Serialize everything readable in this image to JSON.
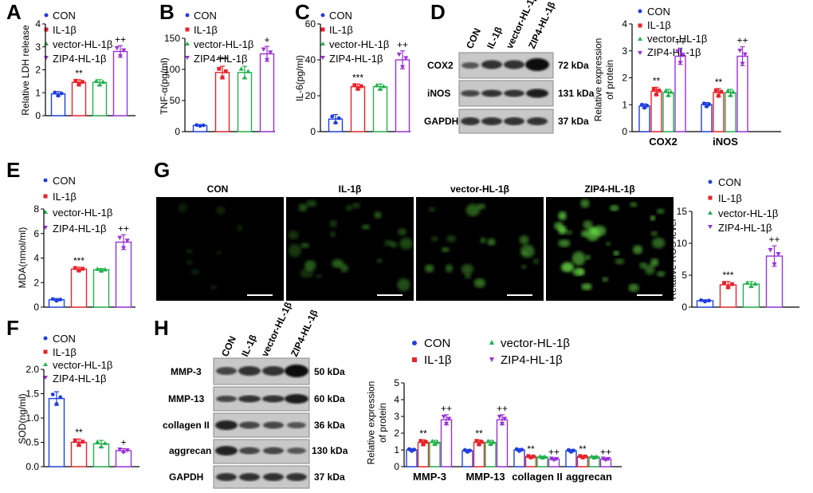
{
  "groups": [
    "CON",
    "IL-1β",
    "vector-HL-1β",
    "ZIP4-HL-1β"
  ],
  "colors": [
    "#1f3fe0",
    "#e8232a",
    "#22b14c",
    "#9b30d9"
  ],
  "panels": {
    "A": {
      "label": "A"
    },
    "B": {
      "label": "B"
    },
    "C": {
      "label": "C"
    },
    "D": {
      "label": "D"
    },
    "E": {
      "label": "E"
    },
    "F": {
      "label": "F"
    },
    "G": {
      "label": "G"
    },
    "H": {
      "label": "H"
    }
  },
  "blot_D": {
    "lanes": [
      "CON",
      "IL-1β",
      "vector-HL-1β",
      "ZIP4-HL-1β"
    ],
    "rows": [
      {
        "protein": "COX2",
        "size": "72 kDa"
      },
      {
        "protein": "iNOS",
        "size": "131 kDa"
      },
      {
        "protein": "GAPDH",
        "size": "37 kDa"
      }
    ]
  },
  "blot_H": {
    "lanes": [
      "CON",
      "IL-1β",
      "vector-HL-1β",
      "ZIP4-HL-1β"
    ],
    "rows": [
      {
        "protein": "MMP-3",
        "size": "50 kDa"
      },
      {
        "protein": "MMP-13",
        "size": "60 kDa"
      },
      {
        "protein": "collagen II",
        "size": "36 kDa"
      },
      {
        "protein": "aggrecan",
        "size": "130 kDa"
      },
      {
        "protein": "GAPDH",
        "size": "37 kDa"
      }
    ]
  },
  "images_G": {
    "titles": [
      "CON",
      "IL-1β",
      "vector-HL-1β",
      "ZIP4-HL-1β"
    ]
  },
  "chart_data": [
    {
      "id": "A",
      "type": "bar",
      "ylabel": "Relative LDH release",
      "ylim": [
        0,
        4
      ],
      "yticks": [
        0,
        1,
        2,
        3,
        4
      ],
      "categories": [
        "CON",
        "IL-1β",
        "vector-HL-1β",
        "ZIP4-HL-1β"
      ],
      "values": [
        0.95,
        1.45,
        1.45,
        2.8
      ],
      "errors": [
        0.1,
        0.12,
        0.12,
        0.25
      ],
      "annotations": [
        "",
        "**",
        "",
        "++"
      ]
    },
    {
      "id": "B",
      "type": "bar",
      "ylabel": "TNF-α(pg/ml)",
      "ylim": [
        0,
        150
      ],
      "yticks": [
        0,
        50,
        100,
        150
      ],
      "categories": [
        "CON",
        "IL-1β",
        "vector-HL-1β",
        "ZIP4-HL-1β"
      ],
      "values": [
        10,
        95,
        95,
        125
      ],
      "errors": [
        1,
        10,
        10,
        12
      ],
      "annotations": [
        "",
        "***",
        "",
        "+"
      ]
    },
    {
      "id": "C",
      "type": "bar",
      "ylabel": "IL-6(pg/ml)",
      "ylim": [
        0,
        60
      ],
      "yticks": [
        0,
        20,
        40,
        60
      ],
      "categories": [
        "CON",
        "IL-1β",
        "vector-HL-1β",
        "ZIP4-HL-1β"
      ],
      "values": [
        7,
        25,
        25,
        40
      ],
      "errors": [
        2.5,
        1.5,
        1.5,
        5
      ],
      "annotations": [
        "",
        "***",
        "",
        "++"
      ]
    },
    {
      "id": "D",
      "type": "bar",
      "ylabel": "Relative expression of protein",
      "ylim": [
        0,
        4
      ],
      "yticks": [
        0,
        1,
        2,
        3,
        4
      ],
      "categories": [
        "COX2",
        "iNOS"
      ],
      "series": [
        {
          "name": "CON",
          "values": [
            0.95,
            1.0
          ],
          "errors": [
            0.08,
            0.08
          ]
        },
        {
          "name": "IL-1β",
          "values": [
            1.5,
            1.45
          ],
          "errors": [
            0.15,
            0.15
          ]
        },
        {
          "name": "vector-HL-1β",
          "values": [
            1.45,
            1.45
          ],
          "errors": [
            0.12,
            0.12
          ]
        },
        {
          "name": "ZIP4-HL-1β",
          "values": [
            2.8,
            2.8
          ],
          "errors": [
            0.3,
            0.35
          ]
        }
      ],
      "annotations": [
        [
          "",
          "**",
          "",
          "++"
        ],
        [
          "",
          "**",
          "",
          "++"
        ]
      ]
    },
    {
      "id": "E",
      "type": "bar",
      "ylabel": "MDA(nmol/ml)",
      "ylim": [
        0,
        8
      ],
      "yticks": [
        0,
        2,
        4,
        6,
        8
      ],
      "categories": [
        "CON",
        "IL-1β",
        "vector-HL-1β",
        "ZIP4-HL-1β"
      ],
      "values": [
        0.6,
        3.1,
        3.05,
        5.3
      ],
      "errors": [
        0.1,
        0.15,
        0.1,
        0.6
      ],
      "annotations": [
        "",
        "***",
        "",
        "++"
      ]
    },
    {
      "id": "F",
      "type": "bar",
      "ylabel": "SOD(ng/ml)",
      "ylim": [
        0,
        2.0
      ],
      "yticks": [
        0.0,
        0.5,
        1.0,
        1.5,
        2.0
      ],
      "categories": [
        "CON",
        "IL-1β",
        "vector-HL-1β",
        "ZIP4-HL-1β"
      ],
      "values": [
        1.4,
        0.5,
        0.47,
        0.33
      ],
      "errors": [
        0.14,
        0.07,
        0.07,
        0.04
      ],
      "annotations": [
        "",
        "**",
        "",
        "+"
      ]
    },
    {
      "id": "G",
      "type": "bar",
      "ylabel": "Relative ROS level",
      "ylim": [
        0,
        15
      ],
      "yticks": [
        0,
        5,
        10,
        15
      ],
      "categories": [
        "CON",
        "IL-1β",
        "vector-HL-1β",
        "ZIP4-HL-1β"
      ],
      "values": [
        1,
        3.5,
        3.6,
        8
      ],
      "errors": [
        0.15,
        0.5,
        0.4,
        1.6
      ],
      "annotations": [
        "",
        "***",
        "",
        "++"
      ]
    },
    {
      "id": "H",
      "type": "bar",
      "ylabel": "Relative expression of protein",
      "ylim": [
        0,
        5
      ],
      "yticks": [
        0,
        1,
        2,
        3,
        4,
        5
      ],
      "categories": [
        "MMP-3",
        "MMP-13",
        "collagen II",
        "aggrecan"
      ],
      "series": [
        {
          "name": "CON",
          "values": [
            1.0,
            0.95,
            1.0,
            0.95
          ],
          "errors": [
            0.08,
            0.08,
            0.08,
            0.08
          ]
        },
        {
          "name": "IL-1β",
          "values": [
            1.45,
            1.45,
            0.6,
            0.6
          ],
          "errors": [
            0.15,
            0.15,
            0.06,
            0.06
          ]
        },
        {
          "name": "vector-HL-1β",
          "values": [
            1.45,
            1.45,
            0.58,
            0.58
          ],
          "errors": [
            0.12,
            0.12,
            0.05,
            0.05
          ]
        },
        {
          "name": "ZIP4-HL-1β",
          "values": [
            2.8,
            2.8,
            0.45,
            0.45
          ],
          "errors": [
            0.3,
            0.3,
            0.06,
            0.06
          ]
        }
      ],
      "annotations": [
        [
          "",
          "**",
          "",
          "++"
        ],
        [
          "",
          "**",
          "",
          "++"
        ],
        [
          "",
          "**",
          "",
          "++"
        ],
        [
          "",
          "**",
          "",
          "++"
        ]
      ]
    }
  ]
}
